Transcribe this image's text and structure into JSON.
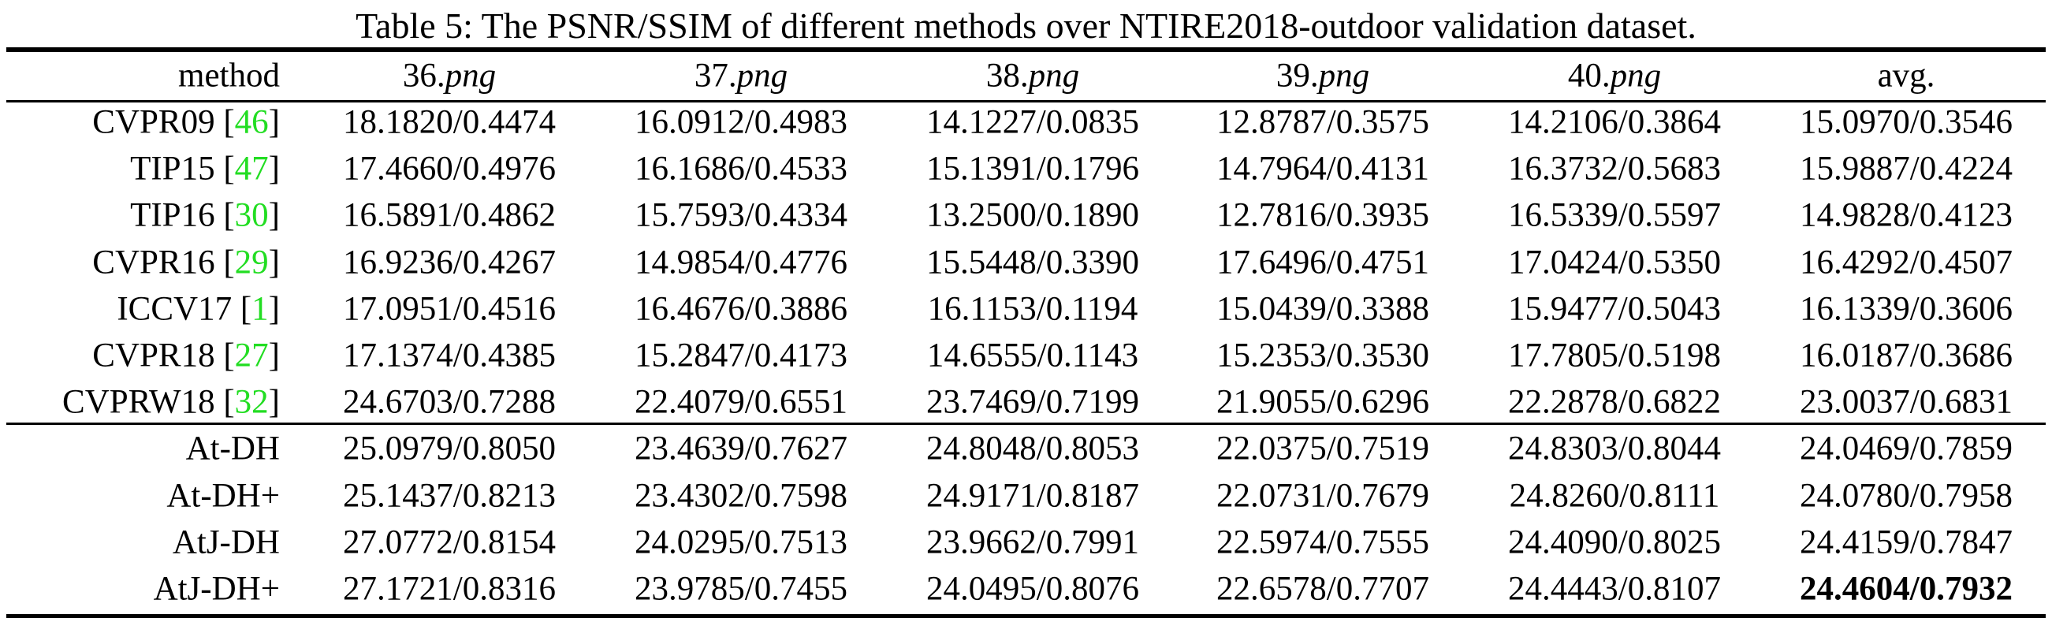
{
  "caption": "Table 5: The PSNR/SSIM of different methods over NTIRE2018-outdoor validation dataset.",
  "header": {
    "method": "method",
    "columns": [
      {
        "num": "36.",
        "ext": "png"
      },
      {
        "num": "37.",
        "ext": "png"
      },
      {
        "num": "38.",
        "ext": "png"
      },
      {
        "num": "39.",
        "ext": "png"
      },
      {
        "num": "40.",
        "ext": "png"
      }
    ],
    "avg": "avg."
  },
  "groups": [
    [
      {
        "method": [
          "CVPR09 [",
          "46",
          "]"
        ],
        "cells": [
          "18.1820/0.4474",
          "16.0912/0.4983",
          "14.1227/0.0835",
          "12.8787/0.3575",
          "14.2106/0.3864",
          "15.0970/0.3546"
        ]
      },
      {
        "method": [
          "TIP15 [",
          "47",
          "]"
        ],
        "cells": [
          "17.4660/0.4976",
          "16.1686/0.4533",
          "15.1391/0.1796",
          "14.7964/0.4131",
          "16.3732/0.5683",
          "15.9887/0.4224"
        ]
      },
      {
        "method": [
          "TIP16 [",
          "30",
          "]"
        ],
        "cells": [
          "16.5891/0.4862",
          "15.7593/0.4334",
          "13.2500/0.1890",
          "12.7816/0.3935",
          "16.5339/0.5597",
          "14.9828/0.4123"
        ]
      },
      {
        "method": [
          "CVPR16 [",
          "29",
          "]"
        ],
        "cells": [
          "16.9236/0.4267",
          "14.9854/0.4776",
          "15.5448/0.3390",
          "17.6496/0.4751",
          "17.0424/0.5350",
          "16.4292/0.4507"
        ]
      },
      {
        "method": [
          "ICCV17 [",
          "1",
          "]"
        ],
        "cells": [
          "17.0951/0.4516",
          "16.4676/0.3886",
          "16.1153/0.1194",
          "15.0439/0.3388",
          "15.9477/0.5043",
          "16.1339/0.3606"
        ]
      },
      {
        "method": [
          "CVPR18 [",
          "27",
          "]"
        ],
        "cells": [
          "17.1374/0.4385",
          "15.2847/0.4173",
          "14.6555/0.1143",
          "15.2353/0.3530",
          "17.7805/0.5198",
          "16.0187/0.3686"
        ]
      },
      {
        "method": [
          "CVPRW18 [",
          "32",
          "]"
        ],
        "cells": [
          "24.6703/0.7288",
          "22.4079/0.6551",
          "23.7469/0.7199",
          "21.9055/0.6296",
          "22.2878/0.6822",
          "23.0037/0.6831"
        ]
      }
    ],
    [
      {
        "method": [
          "At-DH"
        ],
        "cells": [
          "25.0979/0.8050",
          "23.4639/0.7627",
          "24.8048/0.8053",
          "22.0375/0.7519",
          "24.8303/0.8044",
          "24.0469/0.7859"
        ]
      },
      {
        "method": [
          "At-DH+"
        ],
        "cells": [
          "25.1437/0.8213",
          "23.4302/0.7598",
          "24.9171/0.8187",
          "22.0731/0.7679",
          "24.8260/0.8111",
          "24.0780/0.7958"
        ]
      },
      {
        "method": [
          "AtJ-DH"
        ],
        "cells": [
          "27.0772/0.8154",
          "24.0295/0.7513",
          "23.9662/0.7991",
          "22.5974/0.7555",
          "24.4090/0.8025",
          "24.4159/0.7847"
        ]
      },
      {
        "method": [
          "AtJ-DH+"
        ],
        "cells": [
          "27.1721/0.8316",
          "23.9785/0.7455",
          "24.0495/0.8076",
          "22.6578/0.7707",
          "24.4443/0.8107",
          "24.4604/0.7932"
        ]
      }
    ]
  ]
}
